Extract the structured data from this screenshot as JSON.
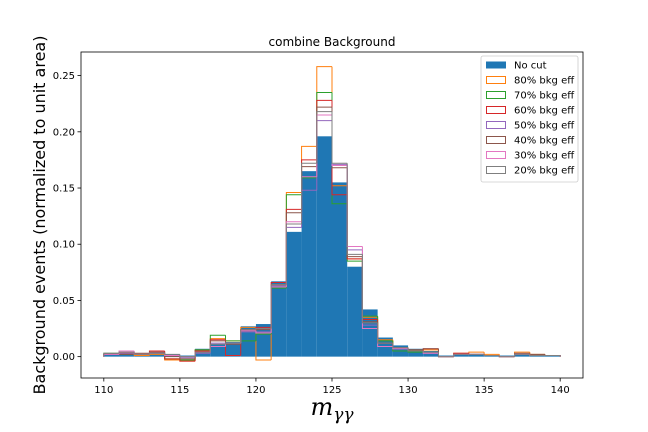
{
  "chart_data": {
    "type": "bar",
    "title": "combine Background",
    "xlabel_main": "m",
    "xlabel_sub": "γγ",
    "ylabel": "Background events (normalized to unit area)",
    "xlim": [
      108.5,
      141.5
    ],
    "ylim": [
      -0.019,
      0.271
    ],
    "xticks": [
      110,
      115,
      120,
      125,
      130,
      135,
      140
    ],
    "yticks": [
      0.0,
      0.05,
      0.1,
      0.15,
      0.2,
      0.25
    ],
    "ytick_labels": [
      "0.00",
      "0.05",
      "0.10",
      "0.15",
      "0.20",
      "0.25"
    ],
    "bin_edges": [
      110,
      111,
      112,
      113,
      114,
      115,
      116,
      117,
      118,
      119,
      120,
      121,
      122,
      123,
      124,
      125,
      126,
      127,
      128,
      129,
      130,
      131,
      132,
      133,
      134,
      135,
      136,
      137,
      138,
      139,
      140
    ],
    "legend_position": "top-right",
    "series": [
      {
        "name": "No cut",
        "style": "filled",
        "color": "#1f77b4",
        "values": [
          0.003,
          0.003,
          0.002,
          0.004,
          0.002,
          0.001,
          0.007,
          0.011,
          0.013,
          0.027,
          0.029,
          0.067,
          0.111,
          0.165,
          0.196,
          0.155,
          0.08,
          0.042,
          0.017,
          0.01,
          0.007,
          0.005,
          0.001,
          0.002,
          0.002,
          0.001,
          0.001,
          0.002,
          0.002,
          0.001
        ]
      },
      {
        "name": "80% bkg eff",
        "style": "step",
        "color": "#ff7f0e",
        "values": [
          0.002,
          0.003,
          0.001,
          0.002,
          -0.003,
          -0.004,
          0.006,
          0.016,
          0.014,
          0.026,
          -0.003,
          0.064,
          0.146,
          0.187,
          0.258,
          0.152,
          0.087,
          0.035,
          0.015,
          0.005,
          0.006,
          0.006,
          0.0,
          0.003,
          0.004,
          0.002,
          0.0,
          0.004,
          0.002,
          0.001
        ]
      },
      {
        "name": "70% bkg eff",
        "style": "step",
        "color": "#2ca02c",
        "values": [
          0.003,
          0.002,
          0.002,
          0.003,
          -0.002,
          -0.003,
          0.006,
          0.019,
          0.014,
          0.014,
          0.02,
          0.061,
          0.144,
          0.159,
          0.235,
          0.136,
          0.085,
          0.036,
          0.014,
          0.005,
          0.004,
          0.004,
          0.0,
          0.002,
          0.002,
          0.001,
          0.0,
          0.002,
          0.001,
          0.001
        ]
      },
      {
        "name": "60% bkg eff",
        "style": "step",
        "color": "#d62728",
        "values": [
          0.002,
          0.003,
          0.002,
          0.005,
          -0.002,
          -0.004,
          0.005,
          0.015,
          0.001,
          0.024,
          0.026,
          0.066,
          0.131,
          0.175,
          0.228,
          0.144,
          0.087,
          0.033,
          0.012,
          0.008,
          0.005,
          0.007,
          0.0,
          0.003,
          0.002,
          0.001,
          0.0,
          0.002,
          0.001,
          0.001
        ]
      },
      {
        "name": "50% bkg eff",
        "style": "step",
        "color": "#9467bd",
        "values": [
          0.002,
          0.003,
          0.002,
          0.003,
          0.001,
          -0.001,
          0.003,
          0.012,
          0.012,
          0.022,
          0.022,
          0.063,
          0.115,
          0.148,
          0.21,
          0.171,
          0.095,
          0.028,
          0.012,
          0.007,
          0.005,
          0.003,
          0.0,
          0.002,
          0.002,
          0.001,
          0.0,
          0.002,
          0.001,
          0.001
        ]
      },
      {
        "name": "40% bkg eff",
        "style": "step",
        "color": "#8c564b",
        "values": [
          0.002,
          0.002,
          0.003,
          0.004,
          0.0,
          -0.002,
          0.004,
          0.014,
          0.011,
          0.023,
          0.024,
          0.062,
          0.128,
          0.169,
          0.222,
          0.168,
          0.089,
          0.031,
          0.012,
          0.008,
          0.006,
          0.007,
          0.0,
          0.002,
          0.002,
          0.001,
          0.0,
          0.003,
          0.002,
          0.001
        ]
      },
      {
        "name": "30% bkg eff",
        "style": "step",
        "color": "#e377c2",
        "values": [
          0.002,
          0.005,
          0.002,
          0.003,
          0.001,
          0.0,
          0.004,
          0.009,
          0.012,
          0.023,
          0.021,
          0.062,
          0.12,
          0.16,
          0.215,
          0.17,
          0.098,
          0.025,
          0.009,
          0.007,
          0.005,
          0.003,
          0.0,
          0.002,
          0.002,
          0.001,
          0.0,
          0.002,
          0.001,
          0.001
        ]
      },
      {
        "name": "20% bkg eff",
        "style": "step",
        "color": "#7f7f7f",
        "values": [
          0.003,
          0.004,
          0.002,
          0.003,
          0.002,
          0.0,
          0.004,
          0.011,
          0.012,
          0.024,
          0.025,
          0.064,
          0.118,
          0.172,
          0.218,
          0.172,
          0.091,
          0.03,
          0.012,
          0.008,
          0.005,
          0.004,
          0.0,
          0.002,
          0.002,
          0.001,
          0.0,
          0.002,
          0.001,
          0.001
        ]
      }
    ]
  }
}
